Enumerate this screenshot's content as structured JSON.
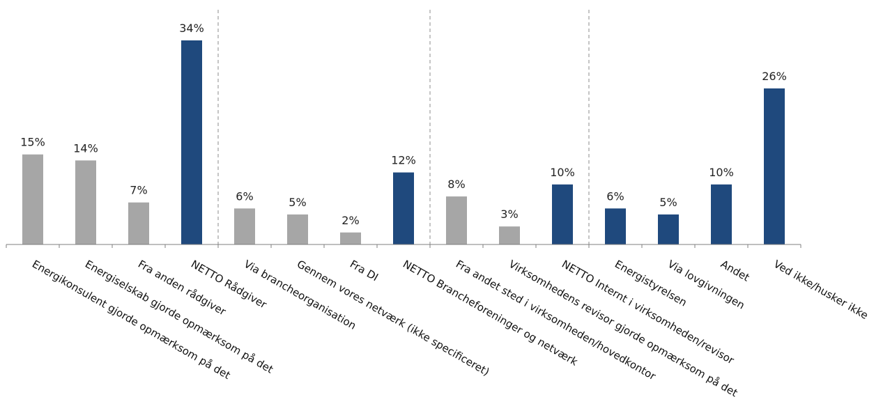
{
  "chart_data": {
    "type": "bar",
    "categories": [
      "Energikonsulent gjorde opmærksom på det",
      "Energiselskab gjorde opmærksom på det",
      "Fra anden rådgiver",
      "NETTO Rådgiver",
      "Via brancheorganisation",
      "Gennem vores netværk (ikke specificeret)",
      "Fra DI",
      "NETTO Brancheforeninger og netværk",
      "Fra andet sted i virksomheden/hovedkontor",
      "Virksomhedens revisor gjorde opmærksom på det",
      "NETTO Internt i virksomheden/revisor",
      "Energistyrelsen",
      "Via lovgivningen",
      "Andet",
      "Ved ikke/husker ikke"
    ],
    "values": [
      15,
      14,
      7,
      34,
      6,
      5,
      2,
      12,
      8,
      3,
      10,
      6,
      5,
      10,
      26
    ],
    "value_labels": [
      "15%",
      "14%",
      "7%",
      "34%",
      "6%",
      "5%",
      "2%",
      "12%",
      "8%",
      "3%",
      "10%",
      "6%",
      "5%",
      "10%",
      "26%"
    ],
    "bar_kind": [
      "item",
      "item",
      "item",
      "netto",
      "item",
      "item",
      "item",
      "netto",
      "item",
      "item",
      "netto",
      "netto",
      "netto",
      "netto",
      "netto"
    ],
    "group_dividers_after": [
      3,
      7,
      10
    ],
    "ylim": [
      0,
      34
    ],
    "grid": false,
    "legend": "none",
    "colors": {
      "item": "#a6a6a6",
      "netto": "#1f497d",
      "axis": "#7f7f7f",
      "divider": "#a6a6a6"
    }
  }
}
